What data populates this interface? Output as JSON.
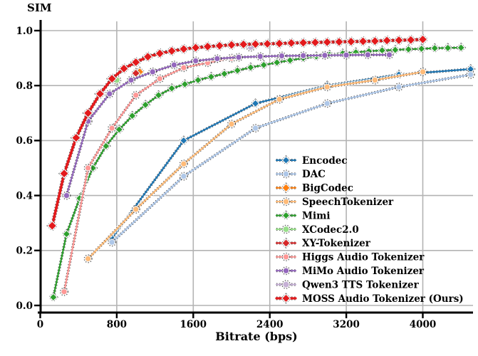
{
  "chart_data": {
    "type": "line",
    "title": "SIM",
    "xlabel": "Bitrate (bps)",
    "ylabel": "SIM",
    "xlim": [
      0,
      4530
    ],
    "ylim": [
      -0.026,
      1.0
    ],
    "grid": true,
    "grid_color": "#b3b3b3",
    "legend_position": "lower-right-inside",
    "x_ticks": [
      0,
      800,
      1600,
      2400,
      3200,
      4000
    ],
    "x_tick_labels": [
      "0",
      "800",
      "1600",
      "2400",
      "3200",
      "4000"
    ],
    "y_ticks": [
      0.0,
      0.2,
      0.4,
      0.6,
      0.8,
      1.0
    ],
    "y_tick_labels": [
      "0.0",
      "0.2",
      "0.4",
      "0.6",
      "0.8",
      "1.0"
    ],
    "series": [
      {
        "name": "Encodec",
        "color": "#1f77b4",
        "marker": "diamond",
        "marker_size": 4,
        "line_width": 2.2,
        "points": [
          [
            750,
            0.245
          ],
          [
            1500,
            0.6
          ],
          [
            2250,
            0.735
          ],
          [
            3000,
            0.8
          ],
          [
            3750,
            0.84
          ],
          [
            4500,
            0.86
          ]
        ]
      },
      {
        "name": "DAC",
        "color": "#aec7e8",
        "marker": "circle",
        "marker_size": 4.2,
        "line_width": 2.2,
        "points": [
          [
            750,
            0.23
          ],
          [
            1500,
            0.47
          ],
          [
            2250,
            0.645
          ],
          [
            3000,
            0.735
          ],
          [
            3750,
            0.795
          ],
          [
            4500,
            0.84
          ]
        ]
      },
      {
        "name": "BigCodec",
        "color": "#ff7f0e",
        "marker": "diamond",
        "marker_size": 4.5,
        "line_width": 2.2,
        "points": [
          [
            1040,
            0.85
          ]
        ]
      },
      {
        "name": "SpeechTokenizer",
        "color": "#ffbb78",
        "marker": "circle",
        "marker_size": 4.2,
        "line_width": 2.2,
        "points": [
          [
            500,
            0.17
          ],
          [
            1000,
            0.35
          ],
          [
            1500,
            0.515
          ],
          [
            2000,
            0.66
          ],
          [
            2500,
            0.75
          ],
          [
            3000,
            0.795
          ],
          [
            3500,
            0.82
          ],
          [
            4000,
            0.85
          ]
        ]
      },
      {
        "name": "Mimi",
        "color": "#2ca02c",
        "marker": "diamond",
        "marker_size": 4,
        "line_width": 2.2,
        "points": [
          [
            137,
            0.03
          ],
          [
            275,
            0.26
          ],
          [
            412,
            0.39
          ],
          [
            550,
            0.5
          ],
          [
            687,
            0.58
          ],
          [
            825,
            0.64
          ],
          [
            962,
            0.69
          ],
          [
            1100,
            0.73
          ],
          [
            1237,
            0.765
          ],
          [
            1375,
            0.79
          ],
          [
            1512,
            0.805
          ],
          [
            1650,
            0.82
          ],
          [
            1787,
            0.832
          ],
          [
            1925,
            0.843
          ],
          [
            2062,
            0.855
          ],
          [
            2200,
            0.866
          ],
          [
            2337,
            0.875
          ],
          [
            2475,
            0.884
          ],
          [
            2612,
            0.892
          ],
          [
            2750,
            0.9
          ],
          [
            2887,
            0.906
          ],
          [
            3025,
            0.912
          ],
          [
            3162,
            0.917
          ],
          [
            3300,
            0.921
          ],
          [
            3437,
            0.925
          ],
          [
            3575,
            0.928
          ],
          [
            3712,
            0.93
          ],
          [
            3850,
            0.932
          ],
          [
            3987,
            0.934
          ],
          [
            4125,
            0.936
          ],
          [
            4262,
            0.937
          ],
          [
            4400,
            0.938
          ]
        ]
      },
      {
        "name": "XCodec2.0",
        "color": "#98df8a",
        "marker": "circle",
        "marker_size": 4.5,
        "line_width": 2.2,
        "points": [
          [
            800,
            0.82
          ]
        ]
      },
      {
        "name": "XY-Tokenizer",
        "color": "#d62728",
        "marker": "diamond",
        "marker_size": 4.5,
        "line_width": 2.2,
        "points": [
          [
            1000,
            0.845
          ]
        ]
      },
      {
        "name": "Higgs Audio Tokenizer",
        "color": "#ff9896",
        "marker": "circle",
        "marker_size": 4.2,
        "line_width": 2.2,
        "points": [
          [
            250,
            0.05
          ],
          [
            500,
            0.5
          ],
          [
            750,
            0.645
          ],
          [
            1000,
            0.765
          ],
          [
            1250,
            0.825
          ],
          [
            1500,
            0.865
          ],
          [
            1750,
            0.883
          ],
          [
            2000,
            0.9
          ]
        ]
      },
      {
        "name": "MiMo Audio Tokenizer",
        "color": "#9467bd",
        "marker": "circle",
        "marker_size": 4.2,
        "line_width": 2.2,
        "points": [
          [
            275,
            0.4
          ],
          [
            500,
            0.67
          ],
          [
            725,
            0.77
          ],
          [
            950,
            0.82
          ],
          [
            1175,
            0.85
          ],
          [
            1400,
            0.875
          ],
          [
            1625,
            0.89
          ],
          [
            1850,
            0.898
          ],
          [
            2075,
            0.903
          ],
          [
            2300,
            0.906
          ],
          [
            2525,
            0.908
          ],
          [
            2750,
            0.909
          ],
          [
            2975,
            0.91
          ],
          [
            3200,
            0.911
          ],
          [
            3425,
            0.912
          ],
          [
            3650,
            0.912
          ]
        ]
      },
      {
        "name": "Qwen3 TTS Tokenizer",
        "color": "#c5b0d5",
        "marker": "circle",
        "marker_size": 4.5,
        "line_width": 2.2,
        "points": [
          [
            2200,
            0.94
          ]
        ]
      },
      {
        "name": "MOSS Audio Tokenizer (Ours)",
        "color": "#e31a1c",
        "marker": "diamond",
        "marker_size": 5,
        "line_width": 3.6,
        "points": [
          [
            125,
            0.29
          ],
          [
            250,
            0.48
          ],
          [
            375,
            0.61
          ],
          [
            500,
            0.7
          ],
          [
            625,
            0.77
          ],
          [
            750,
            0.825
          ],
          [
            875,
            0.862
          ],
          [
            1000,
            0.885
          ],
          [
            1125,
            0.905
          ],
          [
            1250,
            0.917
          ],
          [
            1375,
            0.926
          ],
          [
            1500,
            0.933
          ],
          [
            1625,
            0.938
          ],
          [
            1750,
            0.942
          ],
          [
            1875,
            0.945
          ],
          [
            2000,
            0.948
          ],
          [
            2125,
            0.95
          ],
          [
            2250,
            0.951
          ],
          [
            2375,
            0.952
          ],
          [
            2500,
            0.953
          ],
          [
            2625,
            0.955
          ],
          [
            2750,
            0.956
          ],
          [
            2875,
            0.957
          ],
          [
            3000,
            0.958
          ],
          [
            3125,
            0.959
          ],
          [
            3250,
            0.96
          ],
          [
            3375,
            0.961
          ],
          [
            3500,
            0.962
          ],
          [
            3625,
            0.964
          ],
          [
            3750,
            0.965
          ],
          [
            3875,
            0.966
          ],
          [
            4000,
            0.968
          ]
        ]
      }
    ]
  }
}
